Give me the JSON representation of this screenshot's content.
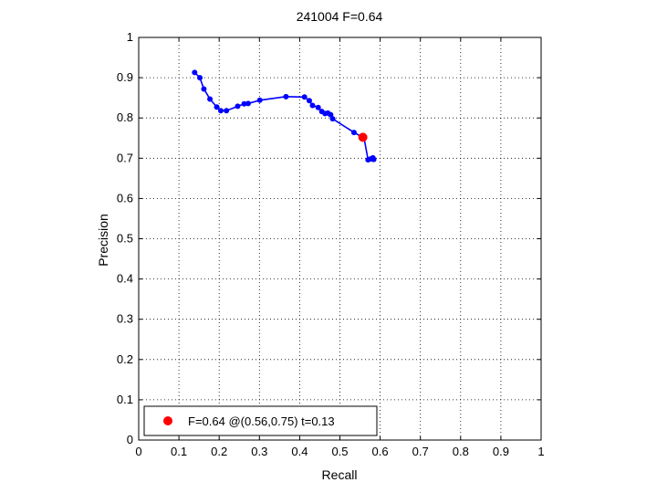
{
  "chart_data": {
    "type": "scatter",
    "title": "241004 F=0.64",
    "xlabel": "Recall",
    "ylabel": "Precision",
    "xlim": [
      0,
      1
    ],
    "ylim": [
      0,
      1
    ],
    "xticks": [
      "0",
      "0.1",
      "0.2",
      "0.3",
      "0.4",
      "0.5",
      "0.6",
      "0.7",
      "0.8",
      "0.9",
      "1"
    ],
    "yticks": [
      "0",
      "0.1",
      "0.2",
      "0.3",
      "0.4",
      "0.5",
      "0.6",
      "0.7",
      "0.8",
      "0.9",
      "1"
    ],
    "grid": true,
    "grid_style": "dotted",
    "legend_placement": "bottom-left",
    "series": [
      {
        "style": "line-with-markers",
        "color": "#0000ff",
        "x": [
          0.139,
          0.152,
          0.162,
          0.177,
          0.194,
          0.204,
          0.218,
          0.246,
          0.262,
          0.272,
          0.301,
          0.366,
          0.412,
          0.424,
          0.432,
          0.446,
          0.455,
          0.463,
          0.47,
          0.477,
          0.482,
          0.535,
          0.56,
          0.57,
          0.576,
          0.582,
          0.584
        ],
        "y": [
          0.913,
          0.9,
          0.872,
          0.847,
          0.827,
          0.818,
          0.818,
          0.829,
          0.835,
          0.836,
          0.844,
          0.853,
          0.852,
          0.843,
          0.831,
          0.826,
          0.816,
          0.811,
          0.812,
          0.808,
          0.798,
          0.764,
          0.75,
          0.696,
          0.698,
          0.701,
          0.697
        ]
      },
      {
        "name": "F=0.64 @(0.56,0.75) t=0.13",
        "style": "marker",
        "color": "#ff0000",
        "x": [
          0.557
        ],
        "y": [
          0.752
        ]
      }
    ]
  }
}
